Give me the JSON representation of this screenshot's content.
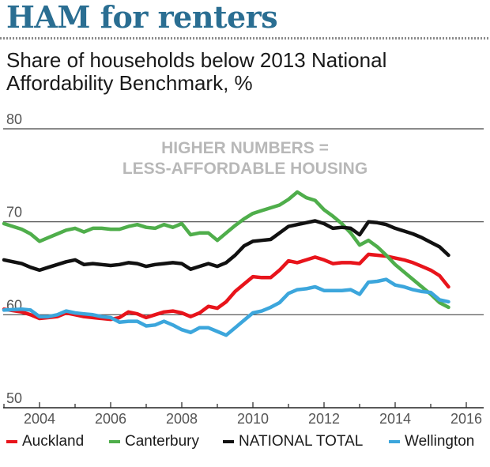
{
  "header": {
    "title": "HAM for renters",
    "subtitle": "Share of households below 2013 National Affordability Benchmark, %"
  },
  "annotation": [
    "HIGHER NUMBERS =",
    "LESS-AFFORDABLE HOUSING"
  ],
  "chart_data": {
    "type": "line",
    "title": "HAM for renters",
    "subtitle": "Share of households below 2013 National Affordability Benchmark, %",
    "xlabel": "",
    "ylabel": "",
    "xlim": [
      2003,
      2016.2
    ],
    "ylim": [
      50,
      80
    ],
    "x_ticks": [
      2004,
      2006,
      2008,
      2010,
      2012,
      2014,
      2016
    ],
    "y_ticks": [
      80,
      70,
      60,
      50
    ],
    "grid": "horizontal",
    "legend_position": "bottom",
    "series": [
      {
        "name": "Auckland",
        "color": "#e8141b",
        "x": [
          2003.0,
          2003.5,
          2003.75,
          2004.0,
          2004.25,
          2004.5,
          2004.75,
          2005.0,
          2005.25,
          2005.5,
          2005.75,
          2006.0,
          2006.25,
          2006.5,
          2006.75,
          2007.0,
          2007.25,
          2007.5,
          2007.75,
          2008.0,
          2008.25,
          2008.5,
          2008.75,
          2009.0,
          2009.25,
          2009.5,
          2009.75,
          2010.0,
          2010.25,
          2010.5,
          2010.75,
          2011.0,
          2011.25,
          2011.5,
          2011.75,
          2012.0,
          2012.25,
          2012.5,
          2012.75,
          2013.0,
          2013.25,
          2013.5,
          2013.75,
          2014.0,
          2014.25,
          2014.5,
          2014.75,
          2015.0,
          2015.25,
          2015.5
        ],
        "y": [
          60.6,
          60.3,
          60.0,
          59.6,
          59.7,
          59.8,
          60.2,
          60.0,
          59.8,
          59.7,
          59.6,
          59.5,
          59.7,
          60.3,
          60.1,
          59.7,
          60.0,
          60.3,
          60.4,
          60.2,
          59.8,
          60.2,
          60.9,
          60.7,
          61.4,
          62.5,
          63.3,
          64.1,
          64.0,
          64.0,
          64.8,
          65.8,
          65.6,
          65.9,
          66.2,
          65.9,
          65.5,
          65.6,
          65.6,
          65.5,
          66.5,
          66.4,
          66.3,
          66.1,
          65.9,
          65.6,
          65.2,
          64.8,
          64.2,
          63.0
        ]
      },
      {
        "name": "Canterbury",
        "color": "#4fae4b",
        "x": [
          2003.0,
          2003.5,
          2003.75,
          2004.0,
          2004.25,
          2004.5,
          2004.75,
          2005.0,
          2005.25,
          2005.5,
          2005.75,
          2006.0,
          2006.25,
          2006.5,
          2006.75,
          2007.0,
          2007.25,
          2007.5,
          2007.75,
          2008.0,
          2008.25,
          2008.5,
          2008.75,
          2009.0,
          2009.25,
          2009.5,
          2009.75,
          2010.0,
          2010.25,
          2010.5,
          2010.75,
          2011.0,
          2011.25,
          2011.5,
          2011.75,
          2012.0,
          2012.25,
          2012.5,
          2012.75,
          2013.0,
          2013.25,
          2013.5,
          2013.75,
          2014.0,
          2014.25,
          2014.5,
          2014.75,
          2015.0,
          2015.25,
          2015.5
        ],
        "y": [
          69.8,
          69.2,
          68.7,
          67.9,
          68.3,
          68.7,
          69.1,
          69.3,
          68.9,
          69.3,
          69.3,
          69.2,
          69.2,
          69.5,
          69.7,
          69.4,
          69.3,
          69.7,
          69.4,
          69.8,
          68.6,
          68.8,
          68.8,
          68.0,
          68.8,
          69.6,
          70.3,
          70.9,
          71.2,
          71.5,
          71.8,
          72.4,
          73.2,
          72.6,
          72.3,
          71.3,
          70.6,
          69.8,
          68.8,
          67.5,
          68.0,
          67.3,
          66.4,
          65.4,
          64.6,
          63.8,
          63.0,
          62.2,
          61.3,
          60.8
        ]
      },
      {
        "name": "NATIONAL TOTAL",
        "color": "#111111",
        "x": [
          2003.0,
          2003.5,
          2003.75,
          2004.0,
          2004.25,
          2004.5,
          2004.75,
          2005.0,
          2005.25,
          2005.5,
          2005.75,
          2006.0,
          2006.25,
          2006.5,
          2006.75,
          2007.0,
          2007.25,
          2007.5,
          2007.75,
          2008.0,
          2008.25,
          2008.5,
          2008.75,
          2009.0,
          2009.25,
          2009.5,
          2009.75,
          2010.0,
          2010.25,
          2010.5,
          2010.75,
          2011.0,
          2011.25,
          2011.5,
          2011.75,
          2012.0,
          2012.25,
          2012.5,
          2012.75,
          2013.0,
          2013.25,
          2013.5,
          2013.75,
          2014.0,
          2014.25,
          2014.5,
          2014.75,
          2015.0,
          2015.25,
          2015.5
        ],
        "y": [
          65.9,
          65.5,
          65.1,
          64.8,
          65.1,
          65.4,
          65.7,
          65.9,
          65.4,
          65.5,
          65.4,
          65.3,
          65.4,
          65.6,
          65.5,
          65.2,
          65.4,
          65.5,
          65.6,
          65.5,
          64.9,
          65.2,
          65.5,
          65.2,
          65.6,
          66.4,
          67.4,
          67.9,
          68.0,
          68.1,
          68.8,
          69.5,
          69.7,
          69.9,
          70.1,
          69.8,
          69.3,
          69.4,
          69.3,
          68.6,
          70.0,
          69.9,
          69.7,
          69.3,
          69.0,
          68.7,
          68.3,
          67.8,
          67.3,
          66.4
        ]
      },
      {
        "name": "Wellington",
        "color": "#3ca6dc",
        "x": [
          2003.0,
          2003.5,
          2003.75,
          2004.0,
          2004.25,
          2004.5,
          2004.75,
          2005.0,
          2005.25,
          2005.5,
          2005.75,
          2006.0,
          2006.25,
          2006.5,
          2006.75,
          2007.0,
          2007.25,
          2007.5,
          2007.75,
          2008.0,
          2008.25,
          2008.5,
          2008.75,
          2009.0,
          2009.25,
          2009.5,
          2009.75,
          2010.0,
          2010.25,
          2010.5,
          2010.75,
          2011.0,
          2011.25,
          2011.5,
          2011.75,
          2012.0,
          2012.25,
          2012.5,
          2012.75,
          2013.0,
          2013.25,
          2013.5,
          2013.75,
          2014.0,
          2014.25,
          2014.5,
          2014.75,
          2015.0,
          2015.25,
          2015.5
        ],
        "y": [
          60.5,
          60.6,
          60.5,
          59.8,
          59.8,
          60.0,
          60.4,
          60.2,
          60.1,
          60.0,
          59.8,
          59.7,
          59.2,
          59.3,
          59.3,
          58.8,
          58.9,
          59.3,
          58.9,
          58.4,
          58.1,
          58.6,
          58.6,
          58.2,
          57.8,
          58.6,
          59.4,
          60.2,
          60.4,
          60.8,
          61.3,
          62.3,
          62.7,
          62.8,
          63.0,
          62.6,
          62.6,
          62.6,
          62.7,
          62.2,
          63.5,
          63.6,
          63.8,
          63.2,
          63.0,
          62.7,
          62.5,
          62.4,
          61.6,
          61.4
        ]
      }
    ]
  }
}
